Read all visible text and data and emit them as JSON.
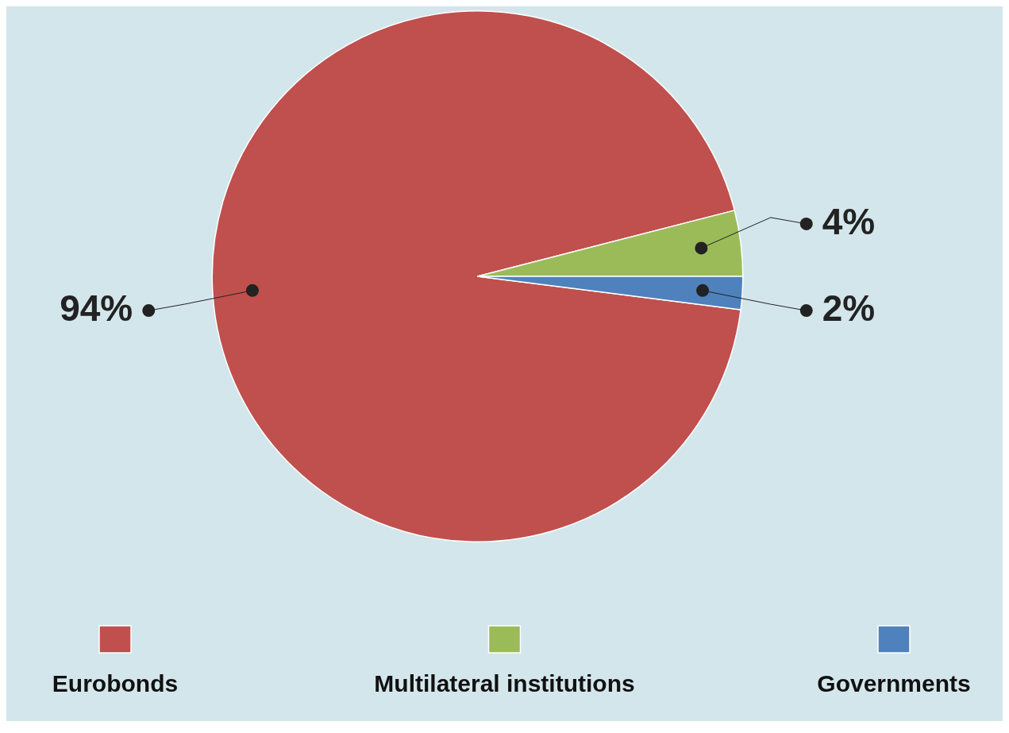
{
  "chart_data": {
    "type": "pie",
    "categories": [
      "Eurobonds",
      "Multilateral institutions",
      "Governments"
    ],
    "values": [
      94,
      4,
      2
    ],
    "colors": [
      "#c0504d",
      "#9bbb59",
      "#4f81bd"
    ],
    "value_labels": [
      "94%",
      "4%",
      "2%"
    ],
    "legend": "bottom"
  }
}
